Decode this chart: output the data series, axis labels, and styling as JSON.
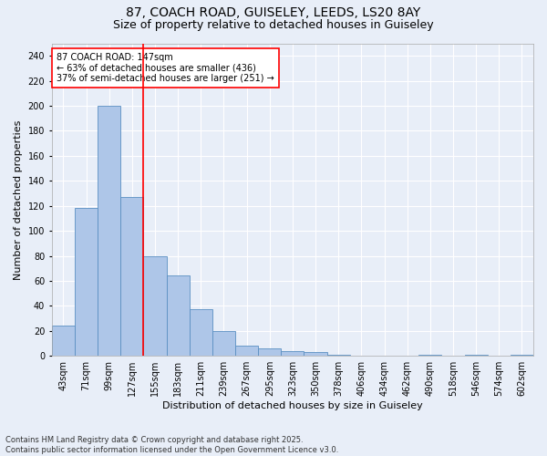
{
  "title_line1": "87, COACH ROAD, GUISELEY, LEEDS, LS20 8AY",
  "title_line2": "Size of property relative to detached houses in Guiseley",
  "xlabel": "Distribution of detached houses by size in Guiseley",
  "ylabel": "Number of detached properties",
  "categories": [
    "43sqm",
    "71sqm",
    "99sqm",
    "127sqm",
    "155sqm",
    "183sqm",
    "211sqm",
    "239sqm",
    "267sqm",
    "295sqm",
    "323sqm",
    "350sqm",
    "378sqm",
    "406sqm",
    "434sqm",
    "462sqm",
    "490sqm",
    "518sqm",
    "546sqm",
    "574sqm",
    "602sqm"
  ],
  "values": [
    24,
    118,
    200,
    127,
    80,
    64,
    37,
    20,
    8,
    6,
    4,
    3,
    1,
    0,
    0,
    0,
    1,
    0,
    1,
    0,
    1
  ],
  "bar_color": "#aec6e8",
  "bar_edge_color": "#5a8fc2",
  "background_color": "#e8eef8",
  "grid_color": "#ffffff",
  "ylim": [
    0,
    250
  ],
  "yticks": [
    0,
    20,
    40,
    60,
    80,
    100,
    120,
    140,
    160,
    180,
    200,
    220,
    240
  ],
  "ref_line_x": 3.5,
  "ref_line_color": "red",
  "annotation_text": "87 COACH ROAD: 147sqm\n← 63% of detached houses are smaller (436)\n37% of semi-detached houses are larger (251) →",
  "annotation_box_color": "white",
  "annotation_box_edge": "red",
  "footer_line1": "Contains HM Land Registry data © Crown copyright and database right 2025.",
  "footer_line2": "Contains public sector information licensed under the Open Government Licence v3.0.",
  "title_fontsize": 10,
  "subtitle_fontsize": 9,
  "tick_fontsize": 7,
  "label_fontsize": 8,
  "annotation_fontsize": 7,
  "footer_fontsize": 6
}
